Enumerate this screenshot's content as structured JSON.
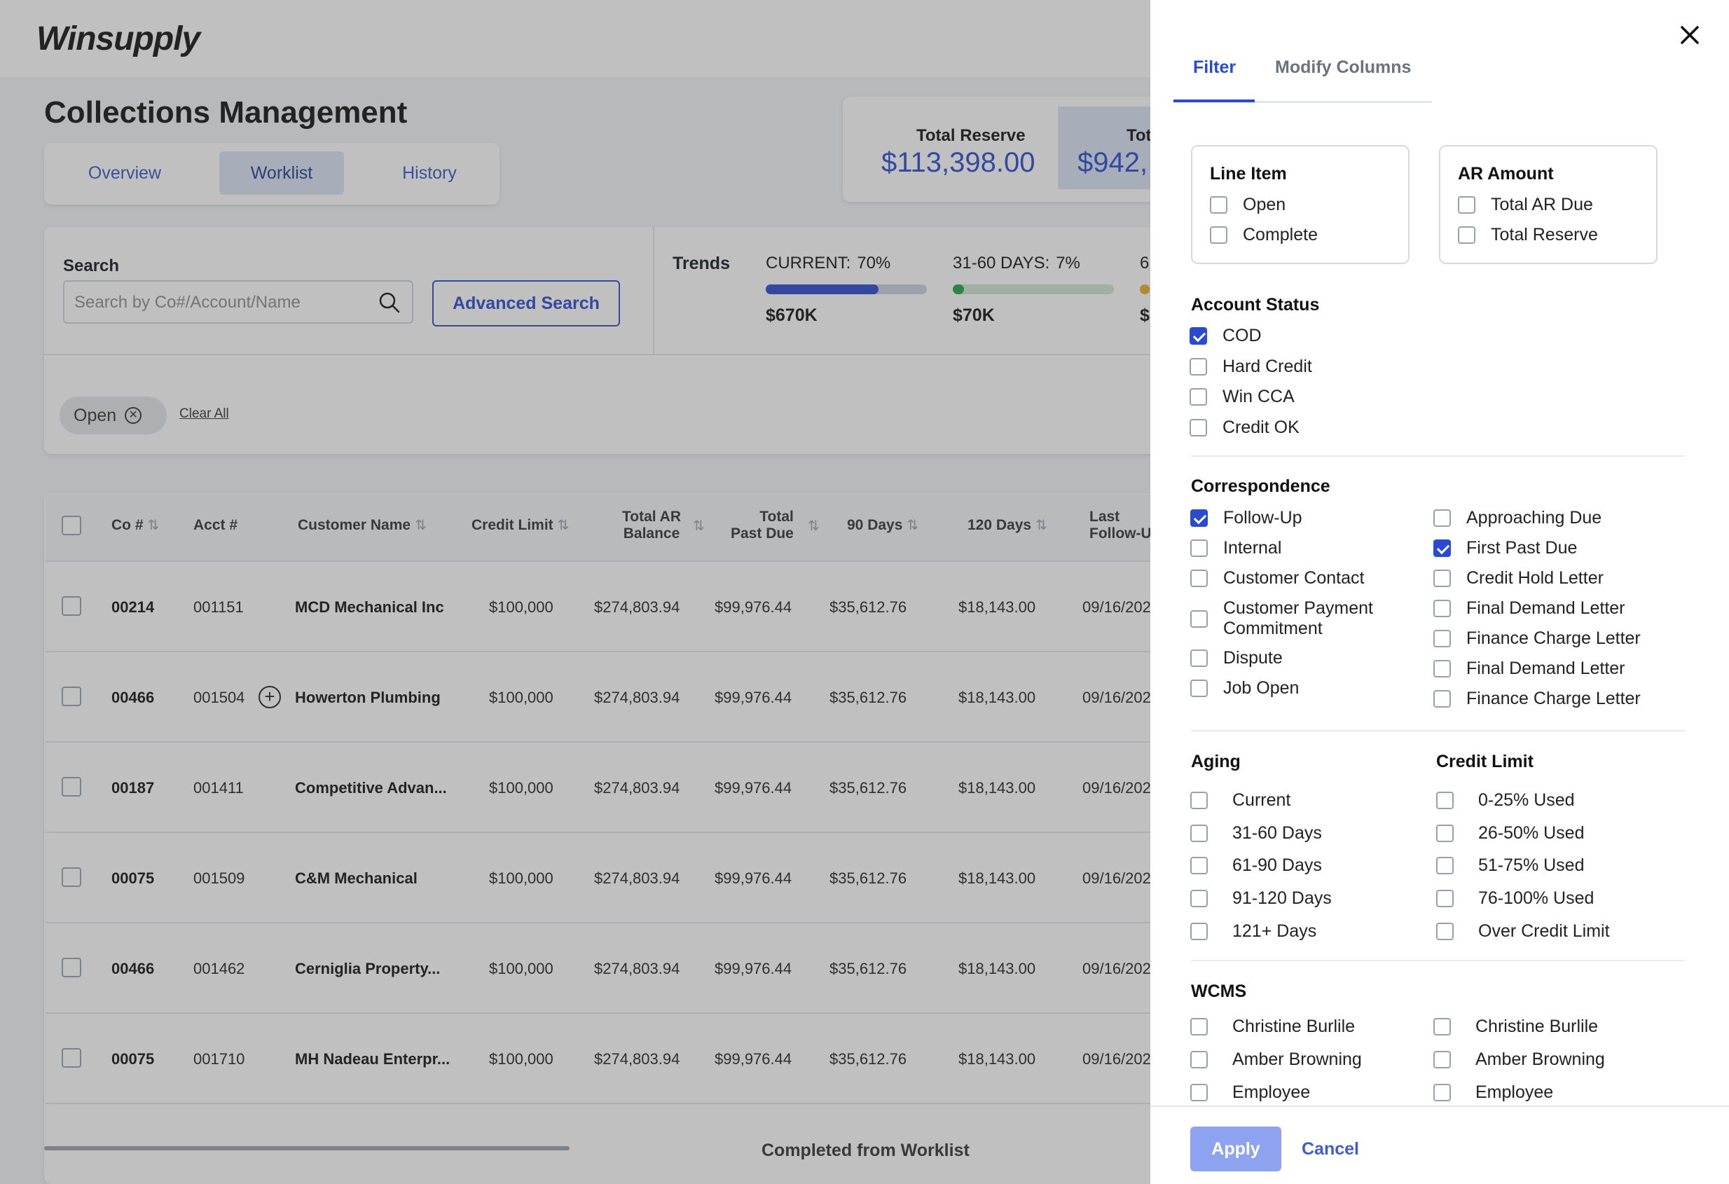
{
  "logo": "Winsupply",
  "page_title": "Collections Management",
  "main_tabs": [
    {
      "label": "Overview"
    },
    {
      "label": "Worklist"
    },
    {
      "label": "History"
    }
  ],
  "stats": [
    {
      "label": "Total Reserve",
      "value": "$113,398.00"
    },
    {
      "label": "Tot",
      "value": "$942,"
    }
  ],
  "search": {
    "label": "Search",
    "placeholder": "Search by Co#/Account/Name",
    "advanced_label": "Advanced Search"
  },
  "trends": {
    "label": "Trends",
    "items": [
      {
        "name": "CURRENT:",
        "pct": "70%",
        "amount": "$670K",
        "fill": 0.7,
        "color": "#2a4bd1"
      },
      {
        "name": "31-60 DAYS:",
        "pct": "7%",
        "amount": "$70K",
        "fill": 0.07,
        "color": "#22a447"
      },
      {
        "name": "6",
        "pct": "",
        "amount": "$",
        "fill": 0.1,
        "color": "#e8b123"
      }
    ]
  },
  "filter_chip": {
    "label": "Open",
    "clear_all": "Clear All"
  },
  "table": {
    "headers": [
      "Co #",
      "Acct #",
      "Customer Name",
      "Credit Limit",
      "Total AR Balance",
      "Total Past Due",
      "90 Days",
      "120 Days",
      "Last Follow-U"
    ],
    "header_lines": {
      "total_ar": [
        "Total AR",
        "Balance"
      ],
      "total_past_due": [
        "Total",
        "Past Due"
      ],
      "last_follow": [
        "Last",
        "Follow-U"
      ]
    },
    "rows": [
      {
        "co": "00214",
        "acct": "001151",
        "name": "MCD Mechanical Inc",
        "credit": "$100,000",
        "ar": "$274,803.94",
        "past": "$99,976.44",
        "d90": "$35,612.76",
        "d120": "$18,143.00",
        "last": "09/16/202"
      },
      {
        "co": "00466",
        "acct": "001504",
        "name": "Howerton Plumbing",
        "credit": "$100,000",
        "ar": "$274,803.94",
        "past": "$99,976.44",
        "d90": "$35,612.76",
        "d120": "$18,143.00",
        "last": "09/16/202"
      },
      {
        "co": "00187",
        "acct": "001411",
        "name": "Competitive Advan...",
        "credit": "$100,000",
        "ar": "$274,803.94",
        "past": "$99,976.44",
        "d90": "$35,612.76",
        "d120": "$18,143.00",
        "last": "09/16/202"
      },
      {
        "co": "00075",
        "acct": "001509",
        "name": "C&M Mechanical",
        "credit": "$100,000",
        "ar": "$274,803.94",
        "past": "$99,976.44",
        "d90": "$35,612.76",
        "d120": "$18,143.00",
        "last": "09/16/202"
      },
      {
        "co": "00466",
        "acct": "001462",
        "name": "Cerniglia Property...",
        "credit": "$100,000",
        "ar": "$274,803.94",
        "past": "$99,976.44",
        "d90": "$35,612.76",
        "d120": "$18,143.00",
        "last": "09/16/202"
      },
      {
        "co": "00075",
        "acct": "001710",
        "name": "MH Nadeau Enterpr...",
        "credit": "$100,000",
        "ar": "$274,803.94",
        "past": "$99,976.44",
        "d90": "$35,612.76",
        "d120": "$18,143.00",
        "last": "09/16/202"
      }
    ],
    "footer": "Completed from Worklist"
  },
  "drawer": {
    "tabs": [
      {
        "label": "Filter"
      },
      {
        "label": "Modify Columns"
      }
    ],
    "line_item": {
      "title": "Line Item",
      "options": [
        {
          "label": "Open",
          "checked": false
        },
        {
          "label": "Complete",
          "checked": false
        }
      ]
    },
    "ar_amount": {
      "title": "AR Amount",
      "options": [
        {
          "label": "Total AR Due",
          "checked": false
        },
        {
          "label": "Total Reserve",
          "checked": false
        }
      ]
    },
    "account_status": {
      "title": "Account Status",
      "options": [
        {
          "label": "COD",
          "checked": true
        },
        {
          "label": "Hard Credit",
          "checked": false
        },
        {
          "label": "Win CCA",
          "checked": false
        },
        {
          "label": "Credit OK",
          "checked": false
        }
      ]
    },
    "correspondence": {
      "title": "Correspondence",
      "left": [
        {
          "label": "Follow-Up",
          "checked": true
        },
        {
          "label": "Internal",
          "checked": false
        },
        {
          "label": "Customer Contact",
          "checked": false
        },
        {
          "label": "Customer Payment Commitment",
          "checked": false
        },
        {
          "label": "Dispute",
          "checked": false
        },
        {
          "label": "Job Open",
          "checked": false
        }
      ],
      "right": [
        {
          "label": "Approaching Due",
          "checked": false
        },
        {
          "label": "First Past Due",
          "checked": true
        },
        {
          "label": "Credit Hold Letter",
          "checked": false
        },
        {
          "label": "Final Demand Letter",
          "checked": false
        },
        {
          "label": "Finance Charge Letter",
          "checked": false
        },
        {
          "label": "Final Demand Letter",
          "checked": false
        },
        {
          "label": "Finance Charge Letter",
          "checked": false
        }
      ]
    },
    "aging": {
      "title": "Aging",
      "options": [
        {
          "label": "Current",
          "checked": false
        },
        {
          "label": "31-60 Days",
          "checked": false
        },
        {
          "label": "61-90 Days",
          "checked": false
        },
        {
          "label": "91-120 Days",
          "checked": false
        },
        {
          "label": "121+ Days",
          "checked": false
        }
      ]
    },
    "credit_limit": {
      "title": "Credit Limit",
      "options": [
        {
          "label": "0-25% Used",
          "checked": false
        },
        {
          "label": "26-50% Used",
          "checked": false
        },
        {
          "label": "51-75% Used",
          "checked": false
        },
        {
          "label": "76-100% Used",
          "checked": false
        },
        {
          "label": "Over Credit Limit",
          "checked": false
        }
      ]
    },
    "wcms": {
      "title": "WCMS",
      "left": [
        {
          "label": "Christine Burlile",
          "checked": false
        },
        {
          "label": "Amber Browning",
          "checked": false
        },
        {
          "label": "Employee",
          "checked": false
        }
      ],
      "right": [
        {
          "label": "Christine Burlile",
          "checked": false
        },
        {
          "label": "Amber Browning",
          "checked": false
        },
        {
          "label": "Employee",
          "checked": false
        }
      ]
    },
    "apply_label": "Apply",
    "cancel_label": "Cancel"
  }
}
